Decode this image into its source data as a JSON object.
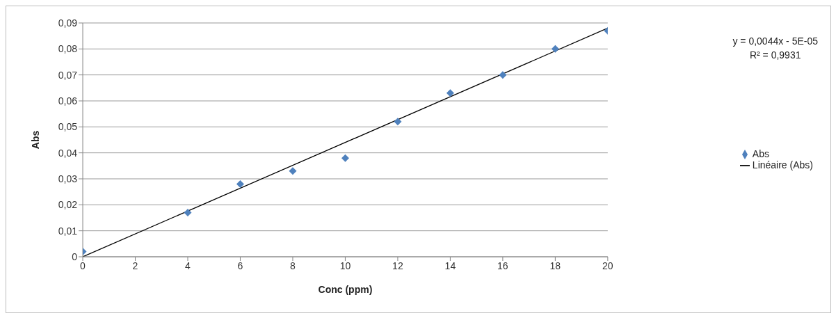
{
  "chart_data": {
    "type": "scatter",
    "xlabel": "Conc (ppm)",
    "ylabel": "Abs",
    "annotations": [
      "y = 0,0044x - 5E-05",
      "R² = 0,9931"
    ],
    "series": [
      {
        "name": "Abs",
        "color": "#4f81bd",
        "marker": "diamond",
        "x": [
          0,
          4,
          6,
          8,
          10,
          12,
          14,
          16,
          18,
          20
        ],
        "values": [
          0.002,
          0.017,
          0.028,
          0.033,
          0.038,
          0.052,
          0.063,
          0.07,
          0.08,
          0.087
        ]
      },
      {
        "name": "Linéaire (Abs)",
        "type": "line",
        "color": "#000000",
        "marker": "none",
        "line_style": "solid",
        "x": [
          0,
          20
        ],
        "values": [
          0,
          0.088
        ]
      }
    ],
    "xlim": [
      0,
      20
    ],
    "xticks": [
      0,
      2,
      4,
      6,
      8,
      10,
      12,
      14,
      16,
      18,
      20
    ],
    "ylim": [
      0,
      0.09
    ],
    "yticks": [
      0,
      {
        "value": 0.01,
        "label": "0,01"
      },
      {
        "value": 0.02,
        "label": "0,02"
      },
      {
        "value": 0.03,
        "label": "0,03"
      },
      {
        "value": 0.04,
        "label": "0,04"
      },
      {
        "value": 0.05,
        "label": "0,05"
      },
      {
        "value": 0.06,
        "label": "0,06"
      },
      {
        "value": 0.07,
        "label": "0,07"
      },
      {
        "value": 0.08,
        "label": "0,08"
      },
      {
        "value": 0.09,
        "label": "0,09"
      }
    ],
    "grid": "y",
    "legend": "right"
  }
}
